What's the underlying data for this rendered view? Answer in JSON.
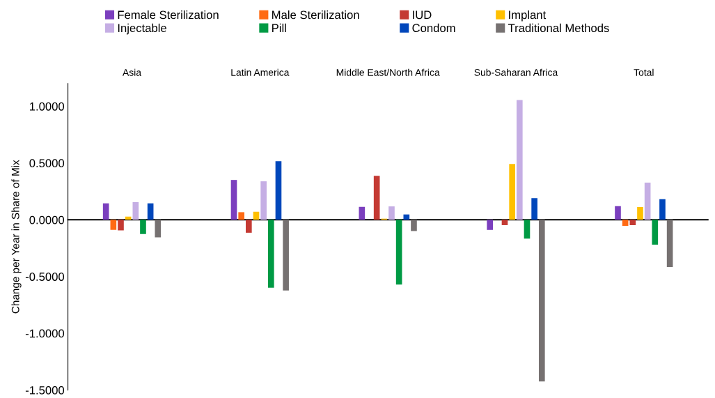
{
  "chart_data": {
    "type": "bar",
    "ylabel": "Change per Year in Share of Mix",
    "categories": [
      "Asia",
      "Latin America",
      "Middle East/North Africa",
      "Sub-Saharan Africa",
      "Total"
    ],
    "series": [
      {
        "name": "Female Sterilization",
        "color": "#7b3fbe",
        "values": [
          0.144,
          0.351,
          0.114,
          -0.089,
          0.12
        ]
      },
      {
        "name": "Male Sterilization",
        "color": "#ff6a13",
        "values": [
          -0.089,
          0.067,
          0,
          0,
          -0.053
        ]
      },
      {
        "name": "IUD",
        "color": "#c43a33",
        "values": [
          -0.093,
          -0.114,
          0.387,
          -0.047,
          -0.047
        ]
      },
      {
        "name": "Implant",
        "color": "#ffc000",
        "values": [
          0.028,
          0.071,
          0.01,
          0.491,
          0.112
        ]
      },
      {
        "name": "Injectable",
        "color": "#c5aee4",
        "values": [
          0.156,
          0.339,
          0.118,
          1.055,
          0.327
        ]
      },
      {
        "name": "Pill",
        "color": "#009a44",
        "values": [
          -0.126,
          -0.598,
          -0.57,
          -0.166,
          -0.219
        ]
      },
      {
        "name": "Condom",
        "color": "#0047bb",
        "values": [
          0.144,
          0.517,
          0.047,
          0.191,
          0.181
        ]
      },
      {
        "name": "Traditional Methods",
        "color": "#767171",
        "values": [
          -0.154,
          -0.623,
          -0.099,
          -1.424,
          -0.416
        ]
      }
    ],
    "ylim": [
      -1.5,
      1.2
    ],
    "yticks": [
      {
        "value": -1.5,
        "label": "-1.5000"
      },
      {
        "value": -1.0,
        "label": "-1.0000"
      },
      {
        "value": -0.5,
        "label": "-0.5000"
      },
      {
        "value": 0,
        "label": "0.0000"
      },
      {
        "value": 0.5,
        "label": "0.5000"
      },
      {
        "value": 1.0,
        "label": "1.0000"
      }
    ],
    "legend": "top"
  }
}
